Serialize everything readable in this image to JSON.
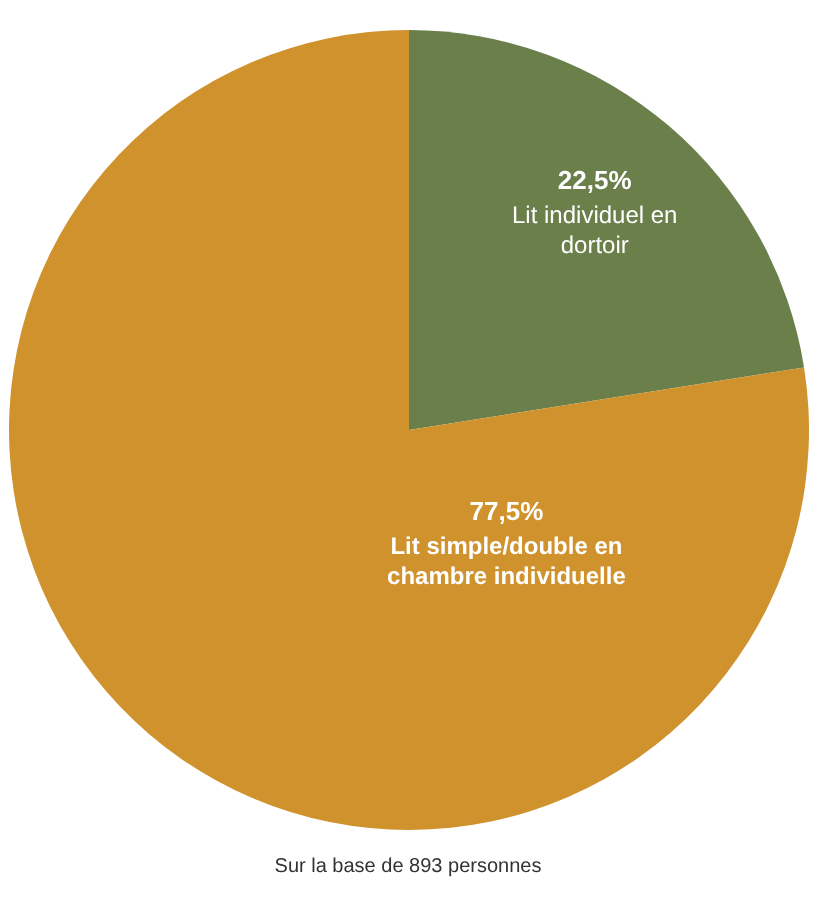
{
  "chart_data": {
    "type": "pie",
    "categories": [
      "Lit individuel en dortoir",
      "Lit simple/double en chambre individuelle"
    ],
    "values": [
      22.5,
      77.5
    ],
    "colors": [
      "#6b7f4b",
      "#d0922c"
    ],
    "value_labels": [
      "22,5%",
      "77,5%"
    ],
    "annotations": [
      "Sur la base de 893 personnes"
    ]
  }
}
